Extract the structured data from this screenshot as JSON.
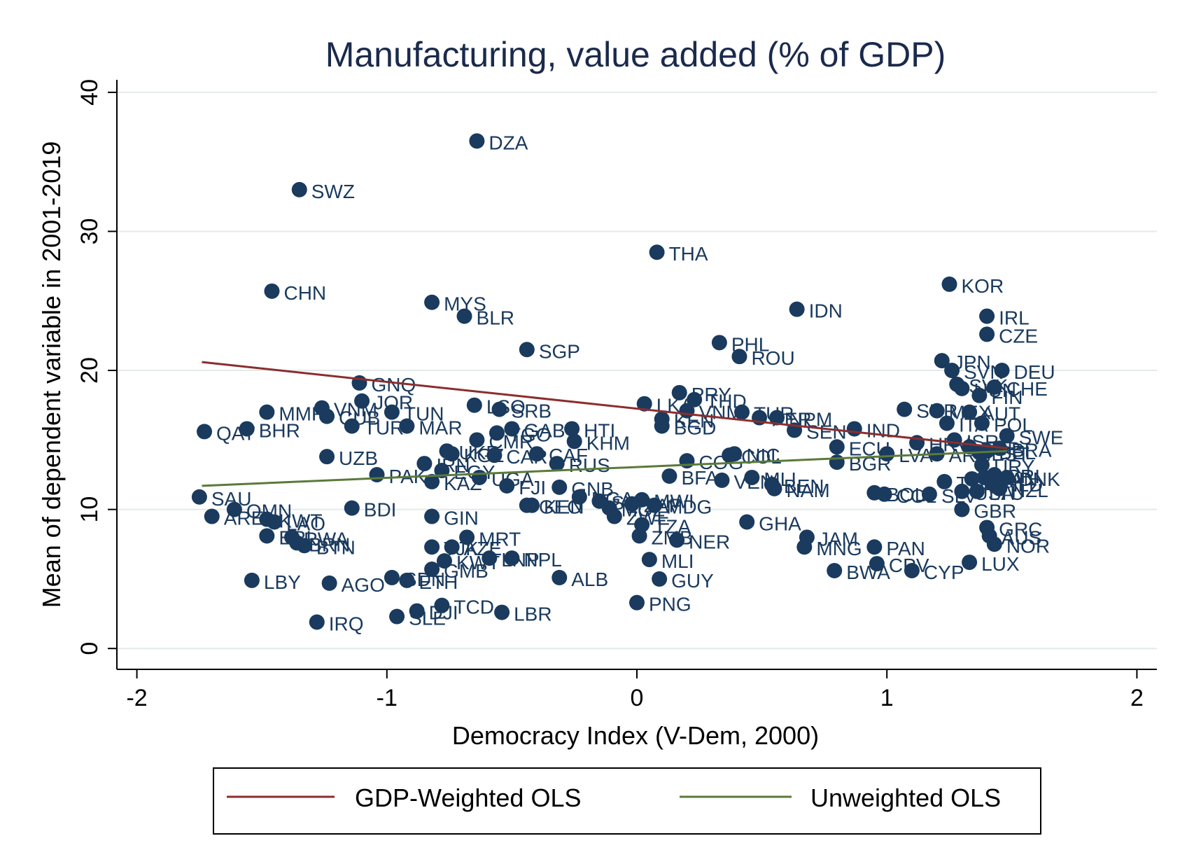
{
  "chart_data": {
    "type": "scatter",
    "title": "Manufacturing, value added (% of GDP)",
    "xlabel": "Democracy Index (V-Dem, 2000)",
    "ylabel": "Mean of dependent variable in 2001-2019",
    "xlim": [
      -2.08,
      2.08
    ],
    "ylim": [
      -1.5,
      40.9
    ],
    "xticks": [
      -2,
      -1,
      0,
      1,
      2
    ],
    "yticks": [
      0,
      10,
      20,
      30,
      40
    ],
    "xtick_labels": [
      "-2",
      "-1",
      "0",
      "1",
      "2"
    ],
    "ytick_labels": [
      "0",
      "10",
      "20",
      "30",
      "40"
    ],
    "grid": "horizontal",
    "legend_position": "bottom",
    "colors": {
      "points": "#1a3a5e",
      "labels": "#1a3a5e",
      "weighted_line": "#8b2e2e",
      "unweighted_line": "#5a7a3a",
      "title": "#1a2a4c",
      "grid": "#e4eaea"
    },
    "points": [
      {
        "label": "DZA",
        "x": -0.64,
        "y": 36.5
      },
      {
        "label": "SWZ",
        "x": -1.35,
        "y": 33.0
      },
      {
        "label": "THA",
        "x": 0.08,
        "y": 28.5
      },
      {
        "label": "CHN",
        "x": -1.46,
        "y": 25.7
      },
      {
        "label": "MYS",
        "x": -0.82,
        "y": 24.9
      },
      {
        "label": "BLR",
        "x": -0.69,
        "y": 23.9
      },
      {
        "label": "SGP",
        "x": -0.44,
        "y": 21.5
      },
      {
        "label": "IDN",
        "x": 0.64,
        "y": 24.4
      },
      {
        "label": "PHL",
        "x": 0.33,
        "y": 22.0
      },
      {
        "label": "ROU",
        "x": 0.41,
        "y": 21.0
      },
      {
        "label": "KOR",
        "x": 1.25,
        "y": 26.2
      },
      {
        "label": "IRL",
        "x": 1.4,
        "y": 23.9
      },
      {
        "label": "CZE",
        "x": 1.4,
        "y": 22.6
      },
      {
        "label": "JPN",
        "x": 1.22,
        "y": 20.7
      },
      {
        "label": "SVN",
        "x": 1.26,
        "y": 20.0
      },
      {
        "label": "DEU",
        "x": 1.46,
        "y": 20.0
      },
      {
        "label": "SVK",
        "x": 1.28,
        "y": 19.0
      },
      {
        "label": "HUN",
        "x": 1.3,
        "y": 18.7
      },
      {
        "label": "CHE",
        "x": 1.43,
        "y": 18.8
      },
      {
        "label": "FIN",
        "x": 1.37,
        "y": 18.2
      },
      {
        "label": "SUR",
        "x": 1.07,
        "y": 17.2
      },
      {
        "label": "MEX",
        "x": 1.2,
        "y": 17.1
      },
      {
        "label": "AUT",
        "x": 1.33,
        "y": 17.0
      },
      {
        "label": "ITA",
        "x": 1.24,
        "y": 16.2
      },
      {
        "label": "POL",
        "x": 1.38,
        "y": 16.2
      },
      {
        "label": "ISR",
        "x": 1.27,
        "y": 15.0
      },
      {
        "label": "SWE",
        "x": 1.48,
        "y": 15.3
      },
      {
        "label": "HRV",
        "x": 1.12,
        "y": 14.8
      },
      {
        "label": "ESP",
        "x": 1.33,
        "y": 14.5
      },
      {
        "label": "BEL",
        "x": 1.4,
        "y": 14.2
      },
      {
        "label": "BRA",
        "x": 1.45,
        "y": 14.4
      },
      {
        "label": "EST",
        "x": 1.37,
        "y": 14.1
      },
      {
        "label": "URY",
        "x": 1.38,
        "y": 13.2
      },
      {
        "label": "ARG",
        "x": 1.2,
        "y": 14.0
      },
      {
        "label": "LVA",
        "x": 1.0,
        "y": 14.0
      },
      {
        "label": "CRI",
        "x": 1.43,
        "y": 12.5
      },
      {
        "label": "FRA",
        "x": 1.34,
        "y": 12.2
      },
      {
        "label": "USA",
        "x": 1.3,
        "y": 11.3
      },
      {
        "label": "DNK",
        "x": 1.48,
        "y": 12.3
      },
      {
        "label": "CAN",
        "x": 1.39,
        "y": 12.3
      },
      {
        "label": "NLD",
        "x": 1.42,
        "y": 11.9
      },
      {
        "label": "NZL",
        "x": 1.45,
        "y": 11.5
      },
      {
        "label": "LTU",
        "x": 1.36,
        "y": 11.3
      },
      {
        "label": "SLV",
        "x": 1.17,
        "y": 11.1
      },
      {
        "label": "BOL",
        "x": 0.95,
        "y": 11.2
      },
      {
        "label": "COL",
        "x": 0.99,
        "y": 11.1
      },
      {
        "label": "TTO",
        "x": 1.23,
        "y": 12.0
      },
      {
        "label": "GBR",
        "x": 1.3,
        "y": 10.0
      },
      {
        "label": "GRC",
        "x": 1.4,
        "y": 8.7
      },
      {
        "label": "AUS",
        "x": 1.41,
        "y": 8.1
      },
      {
        "label": "NOR",
        "x": 1.43,
        "y": 7.5
      },
      {
        "label": "LUX",
        "x": 1.33,
        "y": 6.2
      },
      {
        "label": "CYP",
        "x": 1.1,
        "y": 5.6
      },
      {
        "label": "CPV",
        "x": 0.96,
        "y": 6.1
      },
      {
        "label": "PAN",
        "x": 0.95,
        "y": 7.3
      },
      {
        "label": "BWA",
        "x": 0.79,
        "y": 5.6
      },
      {
        "label": "JAM",
        "x": 0.68,
        "y": 8.0
      },
      {
        "label": "MNG",
        "x": 0.67,
        "y": 7.3
      },
      {
        "label": "GHA",
        "x": 0.44,
        "y": 9.1
      },
      {
        "label": "IND",
        "x": 0.87,
        "y": 15.8
      },
      {
        "label": "ECU",
        "x": 0.8,
        "y": 14.5
      },
      {
        "label": "BGR",
        "x": 0.8,
        "y": 13.4
      },
      {
        "label": "PRY",
        "x": 0.17,
        "y": 18.4
      },
      {
        "label": "LKA",
        "x": 0.03,
        "y": 17.6
      },
      {
        "label": "THD",
        "x": 0.23,
        "y": 17.9
      },
      {
        "label": "TUR",
        "x": 0.42,
        "y": 17.0
      },
      {
        "label": "KEN",
        "x": 0.1,
        "y": 16.5
      },
      {
        "label": "BGD",
        "x": 0.1,
        "y": 16.0
      },
      {
        "label": "VNM",
        "x": 0.2,
        "y": 17.1
      },
      {
        "label": "PER",
        "x": 0.49,
        "y": 16.6
      },
      {
        "label": "SEN",
        "x": 0.63,
        "y": 15.7
      },
      {
        "label": "NPM",
        "x": 0.56,
        "y": 16.6
      },
      {
        "label": "COL2",
        "x": 0.37,
        "y": 13.9
      },
      {
        "label": "NIC",
        "x": 0.39,
        "y": 14.0
      },
      {
        "label": "VEN",
        "x": 0.34,
        "y": 12.1
      },
      {
        "label": "BFA",
        "x": 0.13,
        "y": 12.4
      },
      {
        "label": "MLI2",
        "x": 0.46,
        "y": 12.3
      },
      {
        "label": "BEN",
        "x": 0.54,
        "y": 11.8
      },
      {
        "label": "NAM",
        "x": 0.55,
        "y": 11.5
      },
      {
        "label": "COG",
        "x": 0.2,
        "y": 13.5
      },
      {
        "label": "MDG",
        "x": 0.07,
        "y": 10.3
      },
      {
        "label": "MWI",
        "x": 0.02,
        "y": 10.7
      },
      {
        "label": "TZA",
        "x": 0.02,
        "y": 8.9
      },
      {
        "label": "ZMB",
        "x": 0.01,
        "y": 8.1
      },
      {
        "label": "NER",
        "x": 0.16,
        "y": 7.8
      },
      {
        "label": "MLI",
        "x": 0.05,
        "y": 6.4
      },
      {
        "label": "GUY",
        "x": 0.09,
        "y": 5.0
      },
      {
        "label": "PNG",
        "x": 0.0,
        "y": 3.3
      },
      {
        "label": "HTI",
        "x": -0.26,
        "y": 15.8
      },
      {
        "label": "KHM",
        "x": -0.25,
        "y": 14.9
      },
      {
        "label": "RUS",
        "x": -0.32,
        "y": 13.3
      },
      {
        "label": "CAF",
        "x": -0.4,
        "y": 14.0
      },
      {
        "label": "GNB",
        "x": -0.31,
        "y": 11.6
      },
      {
        "label": "GEO",
        "x": -0.44,
        "y": 10.3
      },
      {
        "label": "KGZ",
        "x": -0.74,
        "y": 14.0
      },
      {
        "label": "IRN",
        "x": -0.85,
        "y": 13.3
      },
      {
        "label": "UKR",
        "x": -0.76,
        "y": 14.2
      },
      {
        "label": "SRB",
        "x": -0.55,
        "y": 17.2
      },
      {
        "label": "LSO",
        "x": -0.65,
        "y": 17.5
      },
      {
        "label": "GAB",
        "x": -0.5,
        "y": 15.8
      },
      {
        "label": "TGO",
        "x": -0.56,
        "y": 15.5
      },
      {
        "label": "CMR",
        "x": -0.64,
        "y": 15.0
      },
      {
        "label": "CAR",
        "x": -0.57,
        "y": 13.9
      },
      {
        "label": "EGY",
        "x": -0.78,
        "y": 12.8
      },
      {
        "label": "UGA",
        "x": -0.63,
        "y": 12.3
      },
      {
        "label": "FJI",
        "x": -0.52,
        "y": 11.7
      },
      {
        "label": "KAZ",
        "x": -0.82,
        "y": 12.0
      },
      {
        "label": "PAK",
        "x": -1.04,
        "y": 12.5
      },
      {
        "label": "UZB",
        "x": -1.24,
        "y": 13.8
      },
      {
        "label": "MMR",
        "x": -1.48,
        "y": 17.0
      },
      {
        "label": "VNM2",
        "x": -1.26,
        "y": 17.3
      },
      {
        "label": "CUB",
        "x": -1.24,
        "y": 16.7
      },
      {
        "label": "JOR",
        "x": -1.1,
        "y": 17.8
      },
      {
        "label": "TUN",
        "x": -0.98,
        "y": 17.0
      },
      {
        "label": "TUR2",
        "x": -1.14,
        "y": 16.0
      },
      {
        "label": "MAR",
        "x": -0.92,
        "y": 16.0
      },
      {
        "label": "GNQ",
        "x": -1.11,
        "y": 19.1
      },
      {
        "label": "QAT",
        "x": -1.73,
        "y": 15.6
      },
      {
        "label": "BHR",
        "x": -1.56,
        "y": 15.8
      },
      {
        "label": "SAU",
        "x": -1.75,
        "y": 10.9
      },
      {
        "label": "ARE",
        "x": -1.7,
        "y": 9.5
      },
      {
        "label": "OMN",
        "x": -1.61,
        "y": 10.0
      },
      {
        "label": "KWT",
        "x": -1.48,
        "y": 9.3
      },
      {
        "label": "LAO",
        "x": -1.45,
        "y": 9.1
      },
      {
        "label": "ERI",
        "x": -1.48,
        "y": 8.1
      },
      {
        "label": "RWA",
        "x": -1.38,
        "y": 8.0
      },
      {
        "label": "BRN",
        "x": -1.36,
        "y": 7.6
      },
      {
        "label": "BTN",
        "x": -1.33,
        "y": 7.4
      },
      {
        "label": "BDI",
        "x": -1.14,
        "y": 10.1
      },
      {
        "label": "LBY",
        "x": -1.54,
        "y": 4.9
      },
      {
        "label": "AGO",
        "x": -1.23,
        "y": 4.7
      },
      {
        "label": "IRQ",
        "x": -1.28,
        "y": 1.9
      },
      {
        "label": "SLE",
        "x": -0.96,
        "y": 2.3
      },
      {
        "label": "DJI",
        "x": -0.88,
        "y": 2.7
      },
      {
        "label": "TCD",
        "x": -0.78,
        "y": 3.1
      },
      {
        "label": "LBR",
        "x": -0.54,
        "y": 2.6
      },
      {
        "label": "ETH",
        "x": -0.92,
        "y": 4.9
      },
      {
        "label": "SDN",
        "x": -0.98,
        "y": 5.1
      },
      {
        "label": "GMB",
        "x": -0.82,
        "y": 5.7
      },
      {
        "label": "KWT2",
        "x": -0.77,
        "y": 6.3
      },
      {
        "label": "NPL",
        "x": -0.5,
        "y": 6.5
      },
      {
        "label": "LNP",
        "x": -0.59,
        "y": 6.5
      },
      {
        "label": "MRT",
        "x": -0.68,
        "y": 8.0
      },
      {
        "label": "TJK",
        "x": -0.82,
        "y": 7.3
      },
      {
        "label": "AZE",
        "x": -0.74,
        "y": 7.3
      },
      {
        "label": "GIN",
        "x": -0.82,
        "y": 9.5
      },
      {
        "label": "ALB",
        "x": -0.31,
        "y": 5.1
      },
      {
        "label": "ZWE",
        "x": -0.09,
        "y": 9.5
      },
      {
        "label": "MOZ",
        "x": -0.11,
        "y": 10.1
      },
      {
        "label": "NGA",
        "x": -0.23,
        "y": 10.9
      },
      {
        "label": "SYR",
        "x": -0.15,
        "y": 10.6
      },
      {
        "label": "ZAF",
        "x": -0.02,
        "y": 10.4
      },
      {
        "label": "KEN2",
        "x": -0.42,
        "y": 10.3
      }
    ],
    "series": [
      {
        "name": "GDP-Weighted OLS",
        "type": "line",
        "x": [
          -1.74,
          1.48
        ],
        "y": [
          20.6,
          14.4
        ]
      },
      {
        "name": "Unweighted OLS",
        "type": "line",
        "x": [
          -1.74,
          1.48
        ],
        "y": [
          11.7,
          14.2
        ]
      }
    ]
  }
}
